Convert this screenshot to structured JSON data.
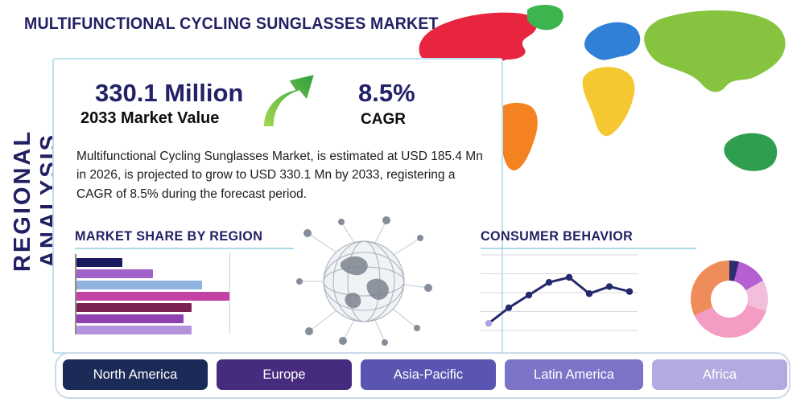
{
  "page": {
    "title": "MULTIFUNCTIONAL CYCLING SUNGLASSES MARKET",
    "vertical_label": "REGIONAL ANALYSIS"
  },
  "stats": {
    "market_value": "330.1 Million",
    "market_value_label": "2033 Market Value",
    "cagr_value": "8.5%",
    "cagr_label": "CAGR"
  },
  "description": "Multifunctional Cycling Sunglasses Market, is estimated at USD 185.4 Mn in 2026, is projected to grow to USD 330.1 Mn by 2033, registering a CAGR of 8.5% during the forecast period.",
  "sections": {
    "market_share_title": "MARKET SHARE BY REGION",
    "consumer_behavior_title": "CONSUMER BEHAVIOR"
  },
  "map": {
    "colors": {
      "north_america": "#e8253f",
      "greenland": "#3cb54e",
      "south_america": "#f58220",
      "europe": "#2f80d6",
      "africa": "#f5c832",
      "asia": "#86c440",
      "australia": "#2f9e4f"
    }
  },
  "regions": [
    {
      "label": "North America",
      "color": "#1b2a57"
    },
    {
      "label": "Europe",
      "color": "#472b7e"
    },
    {
      "label": "Asia-Pacific",
      "color": "#5a55b0"
    },
    {
      "label": "Latin America",
      "color": "#7b74c8"
    },
    {
      "label": "Africa",
      "color": "#b2abdf"
    }
  ],
  "chart_data": [
    {
      "type": "bar",
      "title": "MARKET SHARE BY REGION",
      "orientation": "horizontal",
      "categories": [
        "",
        "",
        "",
        "",
        "",
        "",
        ""
      ],
      "values": [
        30,
        50,
        82,
        100,
        75,
        70,
        75
      ],
      "colors": [
        "#191a5e",
        "#a163c9",
        "#8fb3de",
        "#c343a5",
        "#7c2250",
        "#8f41b0",
        "#b592dc"
      ],
      "xlim": [
        0,
        100
      ],
      "note": "bars unlabeled in source image; values are relative lengths"
    },
    {
      "type": "line",
      "title": "CONSUMER BEHAVIOR",
      "x": [
        1,
        2,
        3,
        4,
        5,
        6,
        7,
        8
      ],
      "values": [
        10,
        32,
        50,
        68,
        75,
        52,
        62,
        55
      ],
      "color": "#252a6e",
      "first_point_color": "#b3a3e3",
      "grid": true,
      "note": "axes unlabeled in source image; values are relative heights"
    },
    {
      "type": "pie",
      "title": "Consumer behavior donut chart",
      "slices": [
        {
          "label": "segment-1",
          "value": 4,
          "color": "#2c2c6e"
        },
        {
          "label": "segment-2",
          "value": 13,
          "color": "#b55fd2"
        },
        {
          "label": "segment-3",
          "value": 13,
          "color": "#f2bedb"
        },
        {
          "label": "segment-4",
          "value": 38,
          "color": "#f49cc3"
        },
        {
          "label": "segment-5",
          "value": 32,
          "color": "#ef8d5a"
        }
      ],
      "note": "slices unlabeled in source image; values are relative proportions"
    }
  ],
  "theme": {
    "accent_navy": "#221f63",
    "card_border": "#bfe0ef",
    "arrow_green_light": "#a5d94f",
    "arrow_green_dark": "#2e9e3f"
  }
}
